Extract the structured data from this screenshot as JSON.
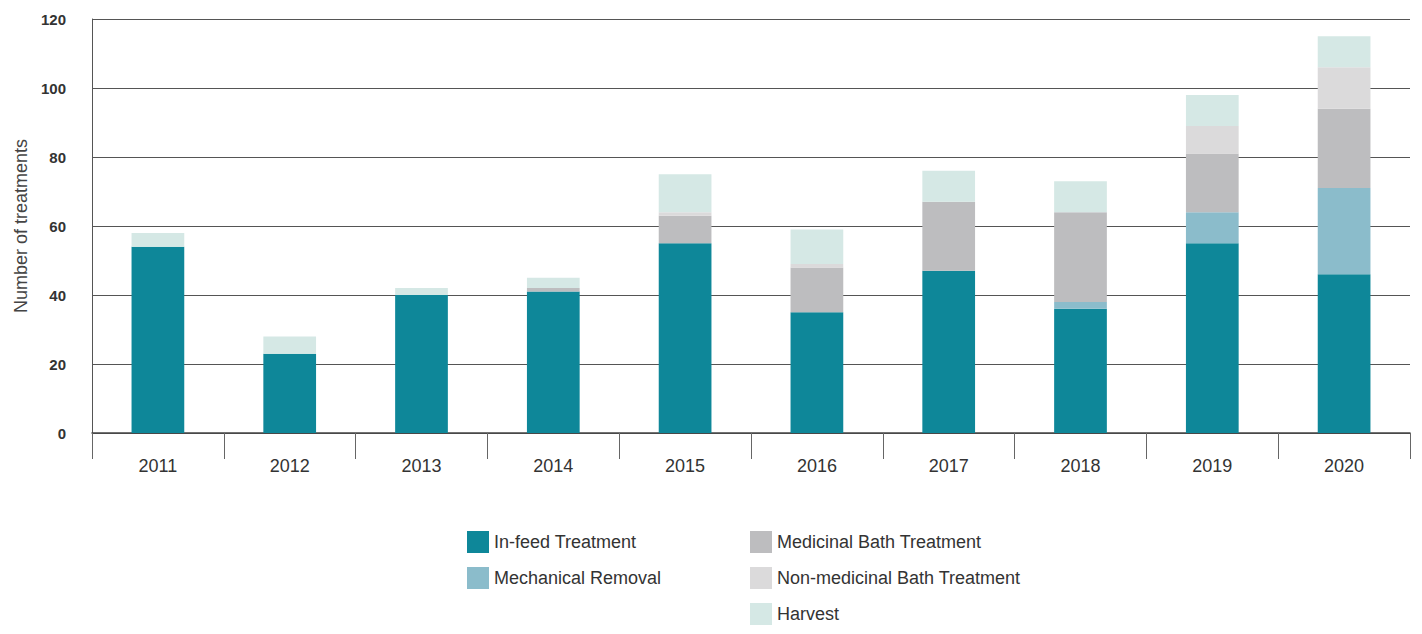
{
  "chart_data": {
    "type": "bar",
    "stacked": true,
    "grid": true,
    "legend": "bottom",
    "y_label": "Number of treatments",
    "categories": [
      "2011",
      "2012",
      "2013",
      "2014",
      "2015",
      "2016",
      "2017",
      "2018",
      "2019",
      "2020"
    ],
    "ylim": [
      0,
      120
    ],
    "yticks": [
      0,
      20,
      40,
      60,
      80,
      100,
      120
    ],
    "series": [
      {
        "name": "In-feed Treatment",
        "color": "#0e8799",
        "values": [
          54,
          23,
          40,
          41,
          55,
          35,
          47,
          36,
          55,
          46
        ]
      },
      {
        "name": "Mechanical Removal",
        "color": "#8bbccb",
        "values": [
          0,
          0,
          0,
          0,
          0,
          0,
          0,
          2,
          9,
          25
        ]
      },
      {
        "name": "Medicinal Bath Treatment",
        "color": "#bdbdbf",
        "values": [
          0,
          0,
          0,
          1,
          8,
          13,
          20,
          26,
          17,
          23
        ]
      },
      {
        "name": "Non-medicinal Bath Treatment",
        "color": "#dbdadb",
        "values": [
          0,
          0,
          0,
          0,
          1,
          1,
          0,
          0,
          8,
          12
        ]
      },
      {
        "name": "Harvest",
        "color": "#d5e8e5",
        "values": [
          4,
          5,
          2,
          3,
          11,
          10,
          9,
          9,
          9,
          9
        ]
      }
    ]
  }
}
